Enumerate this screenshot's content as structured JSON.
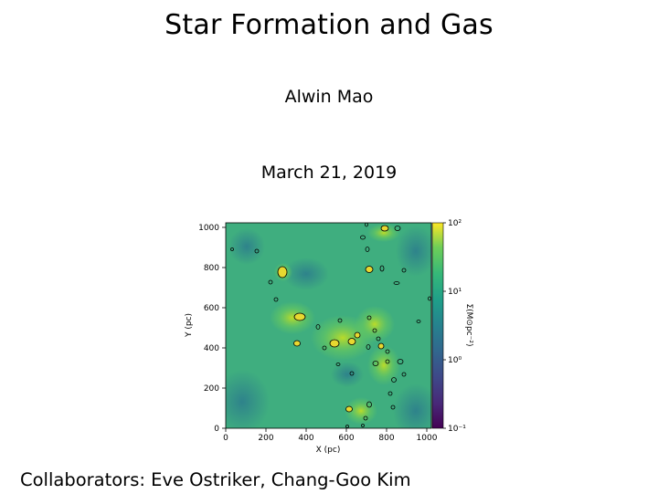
{
  "slide": {
    "title": "Star Formation and Gas",
    "author": "Alwin Mao",
    "date": "March 21, 2019",
    "collaborators": "Collaborators: Eve Ostriker, Chang-Goo Kim"
  },
  "chart_data": {
    "type": "heatmap",
    "xlabel": "X (pc)",
    "ylabel": "Y (pc)",
    "xlim": [
      0,
      1024
    ],
    "ylim": [
      0,
      1024
    ],
    "xticks": [
      "0",
      "200",
      "400",
      "600",
      "800",
      "1000"
    ],
    "yticks": [
      "0",
      "200",
      "400",
      "600",
      "800",
      "1000"
    ],
    "colorbar": {
      "label": "Σ(M⊙pc⁻²)",
      "scale": "log",
      "range": [
        0.1,
        100
      ],
      "ticks": [
        "10⁻¹",
        "10⁰",
        "10¹",
        "10²"
      ],
      "colormap": "viridis"
    },
    "contour_color": "#000000",
    "colors": {
      "low": "#440154",
      "mid": "#21918c",
      "high": "#fde725"
    }
  }
}
